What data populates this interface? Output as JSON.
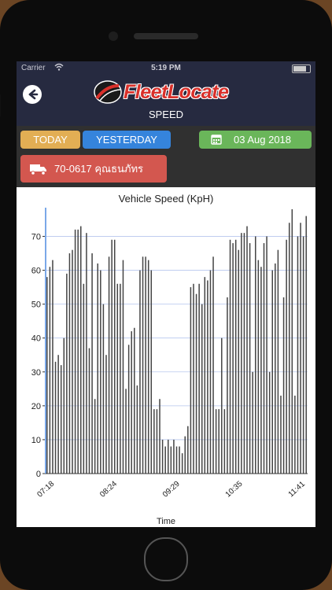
{
  "status": {
    "carrier": "Carrier",
    "time": "5:19 PM"
  },
  "header": {
    "brand": "FleetLocate",
    "title": "SPEED"
  },
  "filters": {
    "today": "TODAY",
    "yesterday": "YESTERDAY",
    "date": "03 Aug 2018",
    "vehicle": "70-0617 คุณธนภัทร"
  },
  "colors": {
    "header_bg": "#262a40",
    "toolbar_bg": "#303030",
    "today": "#e2ae54",
    "yesterday": "#3584dc",
    "date": "#6ab65a",
    "vehicle": "#d3574f",
    "bar": "#444444",
    "grid": "#b6c6ee"
  },
  "chart_data": {
    "type": "bar",
    "title": "Vehicle Speed (KpH)",
    "xlabel": "Time",
    "ylabel": "",
    "ylim": [
      0,
      78
    ],
    "yticks": [
      0,
      10,
      20,
      30,
      40,
      50,
      60,
      70
    ],
    "xticks": [
      "07:18",
      "08:24",
      "09:29",
      "10:35",
      "11:41"
    ],
    "grid": true,
    "values": [
      58,
      61,
      63,
      33,
      35,
      32,
      40,
      59,
      65,
      66,
      72,
      72,
      73,
      56,
      71,
      37,
      65,
      22,
      62,
      60,
      50,
      35,
      64,
      69,
      69,
      56,
      56,
      63,
      25,
      38,
      42,
      43,
      26,
      60,
      64,
      64,
      63,
      60,
      19,
      19,
      22,
      10,
      8,
      10,
      8,
      10,
      8,
      8,
      6,
      11,
      14,
      55,
      56,
      53,
      56,
      50,
      58,
      57,
      60,
      64,
      19,
      19,
      40,
      19,
      52,
      69,
      68,
      69,
      66,
      71,
      71,
      73,
      68,
      30,
      70,
      63,
      61,
      68,
      70,
      30,
      60,
      62,
      66,
      23,
      52,
      69,
      74,
      78,
      23,
      70,
      74,
      70,
      76
    ]
  }
}
